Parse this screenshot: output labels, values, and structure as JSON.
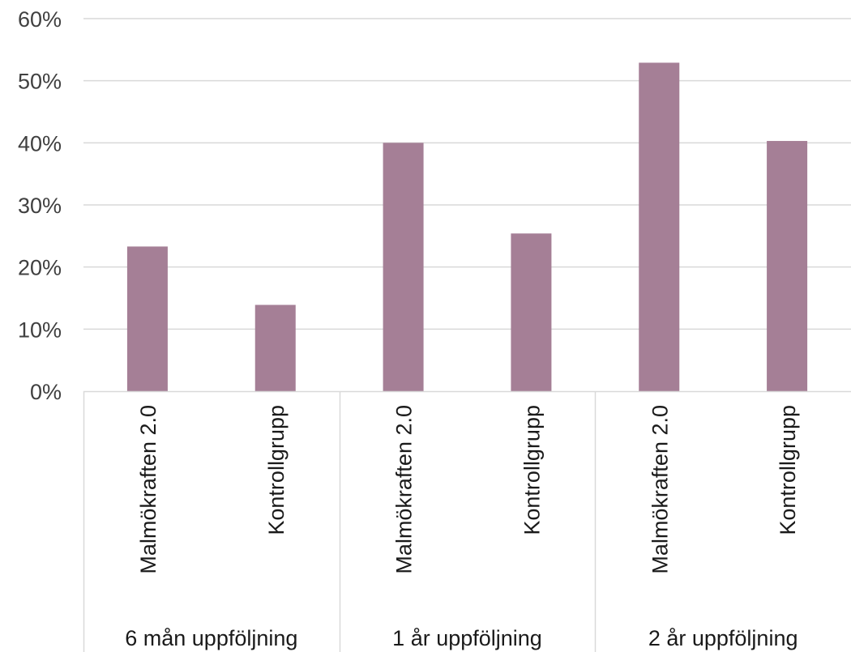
{
  "chart_data": {
    "type": "bar",
    "groups": [
      {
        "label": "6 mån uppföljning",
        "categories": [
          "Malmökraften 2.0",
          "Kontrollgrupp"
        ],
        "values": [
          23.3,
          13.9
        ]
      },
      {
        "label": "1 år uppföljning",
        "categories": [
          "Malmökraften 2.0",
          "Kontrollgrupp"
        ],
        "values": [
          40.0,
          25.4
        ]
      },
      {
        "label": "2 år uppföljning",
        "categories": [
          "Malmökraften 2.0",
          "Kontrollgrupp"
        ],
        "values": [
          52.9,
          40.3
        ]
      }
    ],
    "y_ticks": [
      "0%",
      "10%",
      "20%",
      "30%",
      "40%",
      "50%",
      "60%"
    ],
    "ylim": [
      0,
      60
    ],
    "title": "",
    "xlabel": "",
    "ylabel": "",
    "grid": true,
    "bar_color": "#a57f96",
    "grid_color": "#d9d9d9"
  }
}
